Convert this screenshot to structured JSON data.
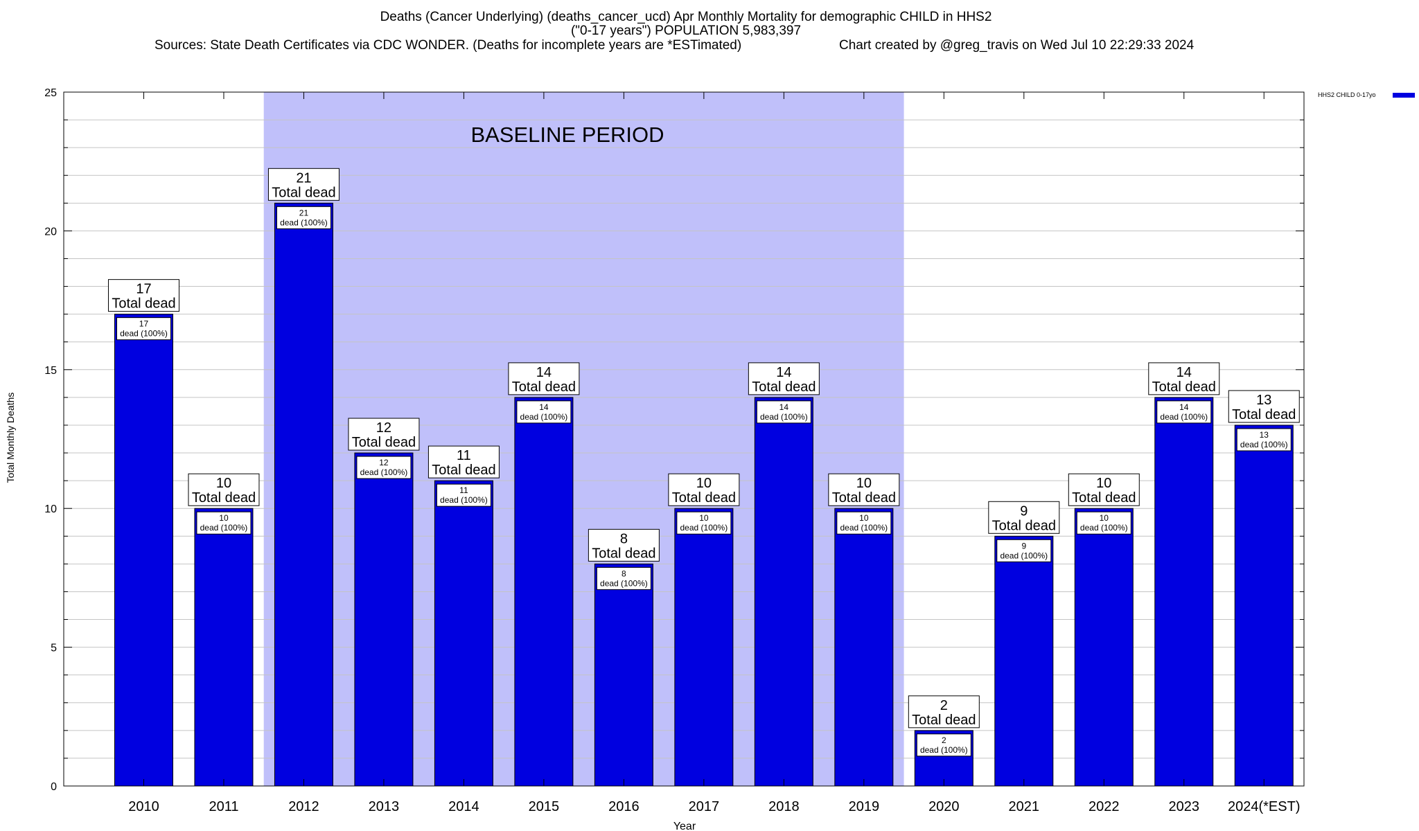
{
  "chart_data": {
    "type": "bar",
    "title_lines": [
      "Deaths (Cancer Underlying) (deaths_cancer_ucd) Apr Monthly Mortality for demographic CHILD in HHS2",
      "(\"0-17 years\") POPULATION 5,983,397"
    ],
    "sources": "Sources: State Death Certificates via CDC WONDER. (Deaths for incomplete years are *ESTimated)",
    "credit": "Chart created by @greg_travis on Wed Jul 10 22:29:33 2024",
    "xlabel": "Year",
    "ylabel": "Total Monthly Deaths",
    "ylim": [
      0,
      25
    ],
    "y_major_ticks": [
      0,
      5,
      10,
      15,
      20,
      25
    ],
    "y_minor_step": 1,
    "grid": true,
    "categories": [
      "2010",
      "2011",
      "2012",
      "2013",
      "2014",
      "2015",
      "2016",
      "2017",
      "2018",
      "2019",
      "2020",
      "2021",
      "2022",
      "2023",
      "2024(*EST)"
    ],
    "series": [
      {
        "name": "HHS2 CHILD 0-17yo",
        "color": "#0000e0",
        "values": [
          17,
          10,
          21,
          12,
          11,
          14,
          8,
          10,
          14,
          10,
          2,
          9,
          10,
          14,
          13
        ]
      }
    ],
    "total_label_suffix": "Total dead",
    "inner_label_suffix": "dead (100%)",
    "baseline": {
      "label": "BASELINE PERIOD",
      "from_category": "2012",
      "to_category": "2019",
      "color": "#c0c0fa"
    },
    "legend_position": "top-right"
  }
}
